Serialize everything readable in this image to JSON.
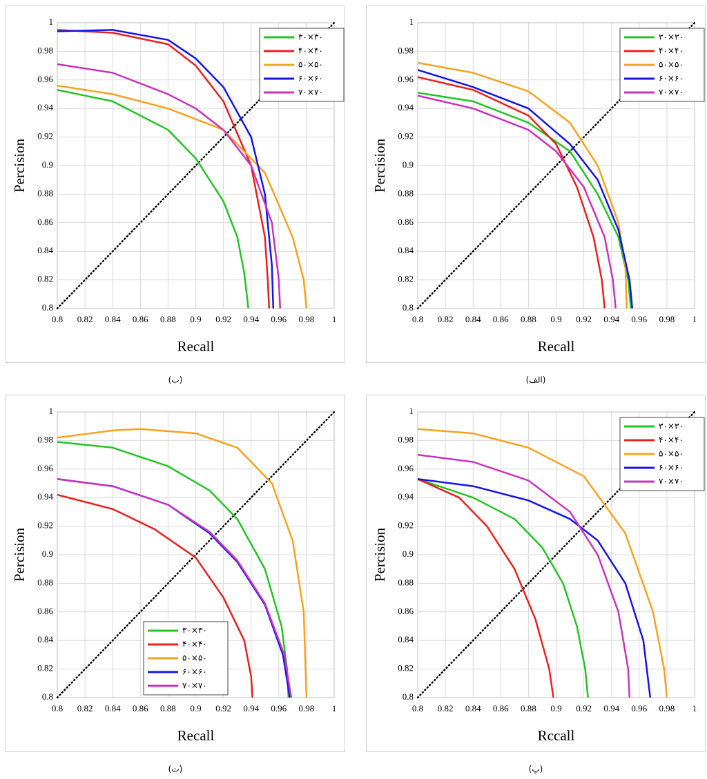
{
  "chart_data": [
    {
      "type": "line",
      "caption": "(ب)",
      "xlabel": "Recall",
      "ylabel": "Percision",
      "xlim": [
        0.8,
        1
      ],
      "ylim": [
        0.8,
        1
      ],
      "xticks": [
        0.8,
        0.82,
        0.84,
        0.86,
        0.88,
        0.9,
        0.92,
        0.94,
        0.96,
        0.98,
        1
      ],
      "yticks": [
        0.8,
        0.82,
        0.84,
        0.86,
        0.88,
        0.9,
        0.92,
        0.94,
        0.96,
        0.98,
        1
      ],
      "grid": true,
      "legend": "upper right",
      "series": [
        {
          "name": "۳۰×۳۰",
          "color": "#22c422",
          "x": [
            0.8,
            0.84,
            0.88,
            0.9,
            0.92,
            0.93,
            0.935,
            0.938
          ],
          "values": [
            0.953,
            0.945,
            0.925,
            0.905,
            0.875,
            0.85,
            0.825,
            0.8
          ]
        },
        {
          "name": "۴۰×۴۰",
          "color": "#e8201e",
          "x": [
            0.8,
            0.84,
            0.88,
            0.9,
            0.92,
            0.94,
            0.95,
            0.952,
            0.953
          ],
          "values": [
            0.995,
            0.993,
            0.985,
            0.97,
            0.945,
            0.9,
            0.85,
            0.82,
            0.8
          ]
        },
        {
          "name": "۵۰×۵۰",
          "color": "#f5a21e",
          "x": [
            0.8,
            0.84,
            0.88,
            0.92,
            0.95,
            0.97,
            0.978,
            0.98
          ],
          "values": [
            0.956,
            0.95,
            0.94,
            0.925,
            0.895,
            0.85,
            0.82,
            0.8
          ]
        },
        {
          "name": "۶۰×۶۰",
          "color": "#1414e6",
          "x": [
            0.8,
            0.84,
            0.88,
            0.9,
            0.92,
            0.94,
            0.95,
            0.955,
            0.956
          ],
          "values": [
            0.994,
            0.995,
            0.988,
            0.975,
            0.955,
            0.92,
            0.88,
            0.83,
            0.8
          ]
        },
        {
          "name": "۷۰×۷۰",
          "color": "#c832be",
          "x": [
            0.8,
            0.84,
            0.88,
            0.9,
            0.92,
            0.94,
            0.955,
            0.96,
            0.961
          ],
          "values": [
            0.971,
            0.965,
            0.95,
            0.94,
            0.925,
            0.9,
            0.86,
            0.82,
            0.8
          ]
        }
      ]
    },
    {
      "type": "line",
      "caption": "(الف)",
      "xlabel": "Recall",
      "ylabel": "Percision",
      "xlim": [
        0.8,
        1
      ],
      "ylim": [
        0.8,
        1
      ],
      "xticks": [
        0.8,
        0.82,
        0.84,
        0.86,
        0.88,
        0.9,
        0.92,
        0.94,
        0.96,
        0.98,
        1
      ],
      "yticks": [
        0.8,
        0.82,
        0.84,
        0.86,
        0.88,
        0.9,
        0.92,
        0.94,
        0.96,
        0.98,
        1
      ],
      "grid": true,
      "legend": "upper right",
      "series": [
        {
          "name": "۳۰×۳۰",
          "color": "#22c422",
          "x": [
            0.8,
            0.84,
            0.88,
            0.91,
            0.93,
            0.945,
            0.952,
            0.954
          ],
          "values": [
            0.951,
            0.945,
            0.93,
            0.91,
            0.88,
            0.85,
            0.82,
            0.8
          ]
        },
        {
          "name": "۴۰×۴۰",
          "color": "#e8201e",
          "x": [
            0.8,
            0.84,
            0.88,
            0.9,
            0.915,
            0.927,
            0.933,
            0.935
          ],
          "values": [
            0.962,
            0.953,
            0.935,
            0.915,
            0.885,
            0.85,
            0.82,
            0.8
          ]
        },
        {
          "name": "۵۰×۵۰",
          "color": "#f5a21e",
          "x": [
            0.8,
            0.84,
            0.88,
            0.91,
            0.93,
            0.945,
            0.95,
            0.951
          ],
          "values": [
            0.972,
            0.965,
            0.952,
            0.93,
            0.9,
            0.86,
            0.83,
            0.8
          ]
        },
        {
          "name": "۶۰×۶۰",
          "color": "#1414e6",
          "x": [
            0.8,
            0.84,
            0.88,
            0.91,
            0.93,
            0.945,
            0.953,
            0.955
          ],
          "values": [
            0.967,
            0.955,
            0.94,
            0.915,
            0.89,
            0.855,
            0.82,
            0.8
          ]
        },
        {
          "name": "۷۰×۷۰",
          "color": "#c832be",
          "x": [
            0.8,
            0.84,
            0.88,
            0.9,
            0.92,
            0.935,
            0.941,
            0.943
          ],
          "values": [
            0.949,
            0.94,
            0.925,
            0.91,
            0.885,
            0.85,
            0.82,
            0.8
          ]
        }
      ]
    },
    {
      "type": "line",
      "caption": "(ت)",
      "xlabel": "Recall",
      "ylabel": "Percision",
      "xlim": [
        0.8,
        1
      ],
      "ylim": [
        0.8,
        1
      ],
      "xticks": [
        0.8,
        0.82,
        0.84,
        0.86,
        0.88,
        0.9,
        0.92,
        0.94,
        0.96,
        0.98,
        1
      ],
      "yticks": [
        0.8,
        0.82,
        0.84,
        0.86,
        0.88,
        0.9,
        0.92,
        0.94,
        0.96,
        0.98,
        1
      ],
      "grid": true,
      "legend": "lower left",
      "series": [
        {
          "name": "۳۰×۳۰",
          "color": "#22c422",
          "x": [
            0.8,
            0.84,
            0.88,
            0.91,
            0.93,
            0.95,
            0.962,
            0.966,
            0.967
          ],
          "values": [
            0.979,
            0.975,
            0.962,
            0.945,
            0.925,
            0.89,
            0.85,
            0.82,
            0.8
          ]
        },
        {
          "name": "۴۰×۴۰",
          "color": "#e8201e",
          "x": [
            0.8,
            0.84,
            0.87,
            0.9,
            0.92,
            0.935,
            0.94,
            0.941
          ],
          "values": [
            0.942,
            0.932,
            0.918,
            0.898,
            0.87,
            0.84,
            0.815,
            0.8
          ]
        },
        {
          "name": "۵۰×۵۰",
          "color": "#f5a21e",
          "x": [
            0.8,
            0.84,
            0.86,
            0.9,
            0.93,
            0.955,
            0.97,
            0.978,
            0.98
          ],
          "values": [
            0.982,
            0.987,
            0.988,
            0.985,
            0.975,
            0.95,
            0.91,
            0.86,
            0.8
          ]
        },
        {
          "name": "۶۰×۶۰",
          "color": "#1414e6",
          "x": [
            0.8,
            0.84,
            0.88,
            0.91,
            0.93,
            0.95,
            0.963,
            0.968
          ],
          "values": [
            0.953,
            0.948,
            0.935,
            0.915,
            0.895,
            0.865,
            0.83,
            0.8
          ]
        },
        {
          "name": "۷۰×۷۰",
          "color": "#c832be",
          "x": [
            0.8,
            0.84,
            0.88,
            0.91,
            0.93,
            0.95,
            0.964,
            0.969
          ],
          "values": [
            0.953,
            0.948,
            0.935,
            0.916,
            0.896,
            0.866,
            0.83,
            0.8
          ]
        }
      ]
    },
    {
      "type": "line",
      "caption": "(پ)",
      "xlabel": "Rccall",
      "ylabel": "Percision",
      "xlim": [
        0.8,
        1
      ],
      "ylim": [
        0.8,
        1
      ],
      "xticks": [
        0.8,
        0.82,
        0.84,
        0.86,
        0.88,
        0.9,
        0.92,
        0.94,
        0.96,
        0.98,
        1
      ],
      "yticks": [
        0.8,
        0.82,
        0.84,
        0.86,
        0.88,
        0.9,
        0.92,
        0.94,
        0.96,
        0.98,
        1
      ],
      "grid": true,
      "legend": "upper right",
      "series": [
        {
          "name": "۳۰×۳۰",
          "color": "#22c422",
          "x": [
            0.8,
            0.84,
            0.87,
            0.89,
            0.905,
            0.915,
            0.921,
            0.923
          ],
          "values": [
            0.953,
            0.94,
            0.925,
            0.905,
            0.88,
            0.85,
            0.82,
            0.8
          ]
        },
        {
          "name": "۴۰×۴۰",
          "color": "#e8201e",
          "x": [
            0.8,
            0.83,
            0.85,
            0.87,
            0.885,
            0.895,
            0.898
          ],
          "values": [
            0.953,
            0.94,
            0.92,
            0.89,
            0.855,
            0.82,
            0.8
          ]
        },
        {
          "name": "۵۰×۵۰",
          "color": "#f5a21e",
          "x": [
            0.8,
            0.84,
            0.88,
            0.92,
            0.95,
            0.97,
            0.978,
            0.98
          ],
          "values": [
            0.988,
            0.985,
            0.975,
            0.955,
            0.915,
            0.86,
            0.82,
            0.8
          ]
        },
        {
          "name": "۶۰×۶۰",
          "color": "#1414e6",
          "x": [
            0.8,
            0.84,
            0.88,
            0.91,
            0.93,
            0.95,
            0.963,
            0.968
          ],
          "values": [
            0.953,
            0.948,
            0.938,
            0.925,
            0.91,
            0.88,
            0.84,
            0.8
          ]
        },
        {
          "name": "۷۰×۷۰",
          "color": "#c832be",
          "x": [
            0.8,
            0.84,
            0.88,
            0.91,
            0.93,
            0.945,
            0.952,
            0.953
          ],
          "values": [
            0.97,
            0.965,
            0.952,
            0.93,
            0.9,
            0.86,
            0.82,
            0.8
          ]
        }
      ]
    }
  ]
}
